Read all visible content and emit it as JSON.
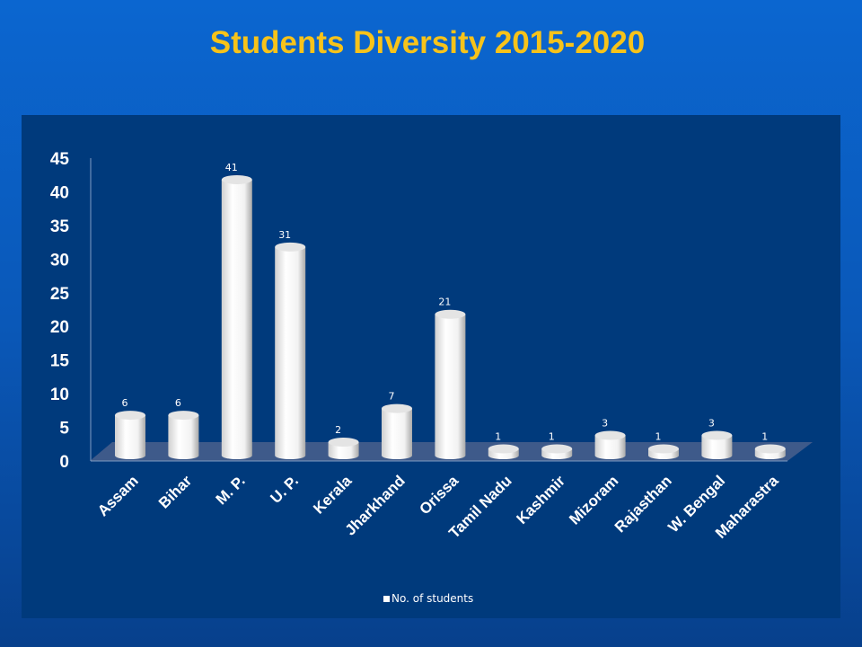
{
  "chart_data": {
    "type": "bar",
    "title": "Students Diversity 2015-2020",
    "categories": [
      "Assam",
      "Bihar",
      "M. P.",
      "U. P.",
      "Kerala",
      "Jharkhand",
      "Orissa",
      "Tamil Nadu",
      "Kashmir",
      "Mizoram",
      "Rajasthan",
      "W. Bengal",
      "Maharastra"
    ],
    "series": [
      {
        "name": "No. of students",
        "values": [
          6,
          6,
          41,
          31,
          2,
          7,
          21,
          1,
          1,
          3,
          1,
          3,
          1
        ]
      }
    ],
    "xlabel": "",
    "ylabel": "",
    "ylim": [
      0,
      45
    ],
    "yticks": [
      0,
      5,
      10,
      15,
      20,
      25,
      30,
      35,
      40,
      45
    ],
    "grid": false,
    "legend": "bottom",
    "colors": {
      "bar": "#ffffff",
      "title": "#f7c31a",
      "panel": "#003a7c"
    }
  }
}
